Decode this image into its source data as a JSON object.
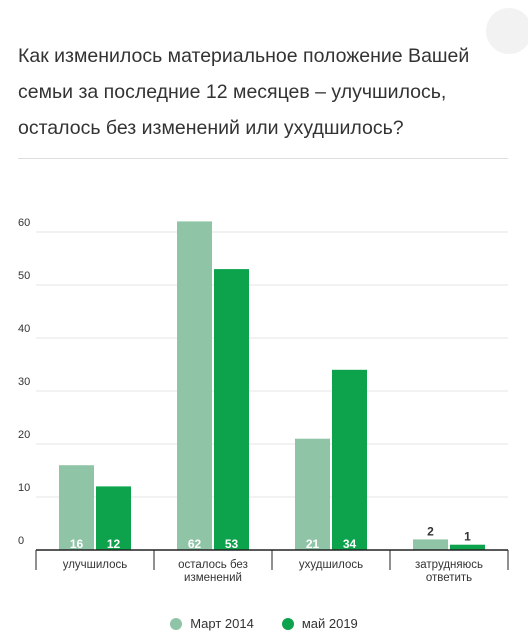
{
  "title": "Как изменилось материальное положение Вашей семьи за последние 12 месяцев – улучшилось, осталось без изменений или ухудшилось?",
  "colors": {
    "series1": "#90c4a6",
    "series2": "#0da34c"
  },
  "chart_data": {
    "type": "bar",
    "categories": [
      "улучшилось",
      "осталось без изменений",
      "ухудшилось",
      "затрудняюсь ответить"
    ],
    "series": [
      {
        "name": "Март 2014",
        "values": [
          16,
          62,
          21,
          2
        ]
      },
      {
        "name": "май 2019",
        "values": [
          12,
          53,
          34,
          1
        ]
      }
    ],
    "ylim": [
      0,
      60
    ],
    "yticks": [
      0,
      10,
      20,
      30,
      40,
      50,
      60
    ],
    "grid": true,
    "legend_position": "bottom"
  }
}
